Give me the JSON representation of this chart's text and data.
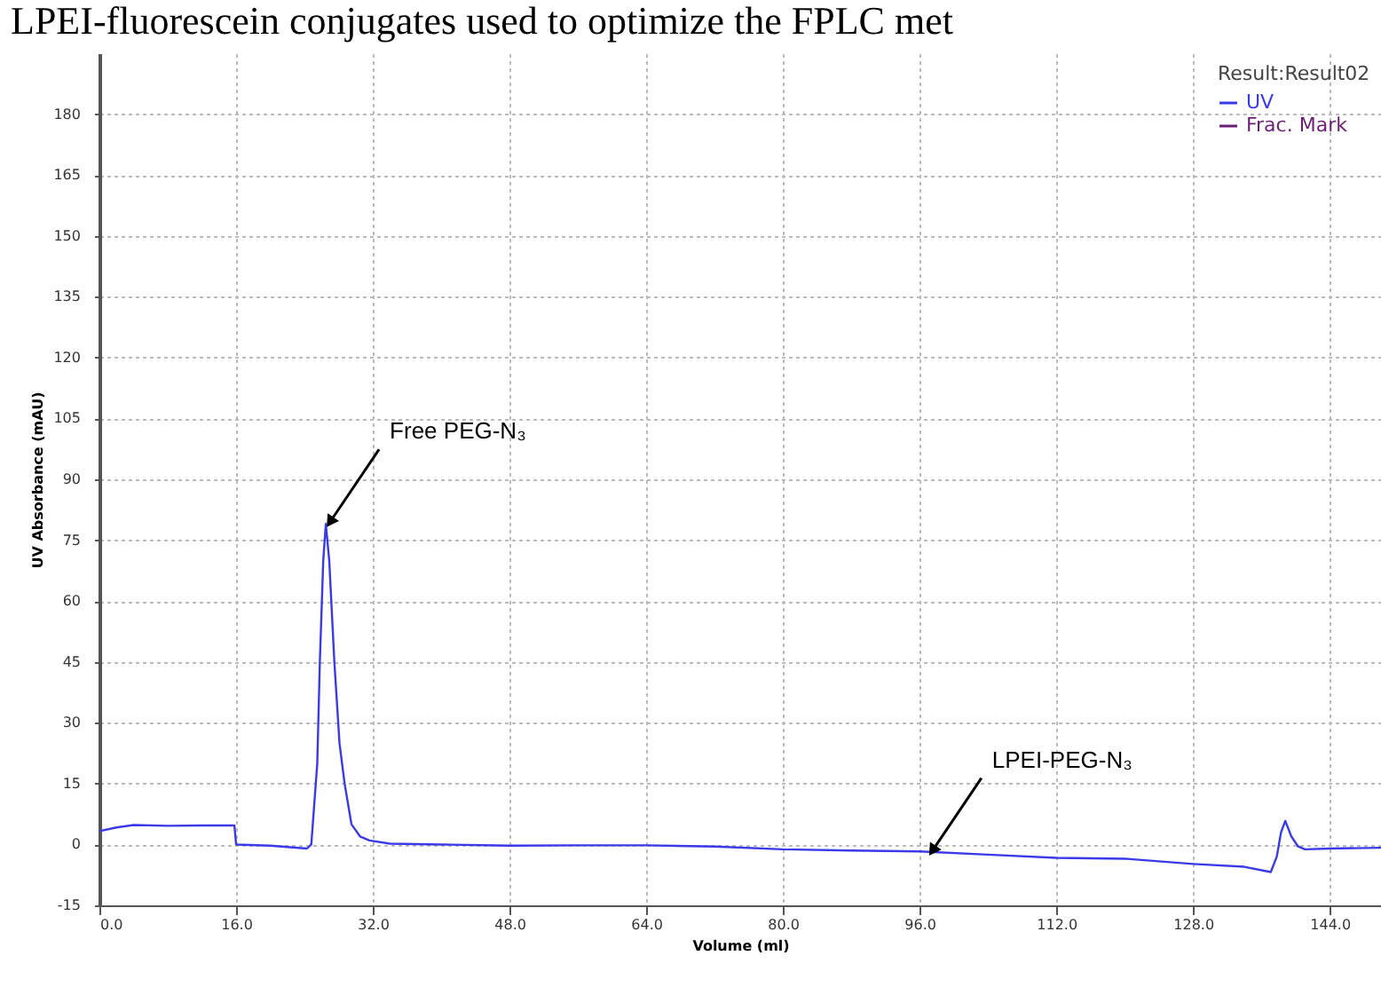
{
  "chart_data": {
    "type": "line",
    "title": "LPEI-fluorescein conjugates used to optimize the FPLC met",
    "xlabel": "Volume  (ml)",
    "ylabel": "UV  Absorbance  (mAU)",
    "legend_title": "Result:Result02",
    "legend": "top right",
    "grid": true,
    "xlim": [
      0,
      150
    ],
    "ylim": [
      -15,
      195
    ],
    "xticks": [
      {
        "value": 0,
        "label": "0.0"
      },
      {
        "value": 16,
        "label": "16.0"
      },
      {
        "value": 32,
        "label": "32.0"
      },
      {
        "value": 48,
        "label": "48.0"
      },
      {
        "value": 64,
        "label": "64.0"
      },
      {
        "value": 80,
        "label": "80.0"
      },
      {
        "value": 96,
        "label": "96.0"
      },
      {
        "value": 112,
        "label": "112.0"
      },
      {
        "value": 128,
        "label": "128.0"
      },
      {
        "value": 144,
        "label": "144.0"
      }
    ],
    "yticks": [
      -15,
      0,
      15,
      30,
      45,
      60,
      75,
      90,
      105,
      120,
      135,
      150,
      165,
      180
    ],
    "series": [
      {
        "name": "UV",
        "color": "#3a3ae8",
        "x": [
          0,
          2,
          4,
          8,
          12,
          15.8,
          16,
          20,
          24.3,
          24.8,
          25.5,
          25.8,
          26.2,
          26.5,
          26.9,
          27.5,
          28.1,
          28.7,
          29.5,
          30.5,
          31.6,
          34,
          40,
          48,
          56,
          64,
          72,
          80,
          88,
          96,
          104,
          112,
          120,
          128,
          134,
          137.1,
          137.8,
          138.3,
          138.8,
          139.5,
          140.3,
          141.1,
          144,
          150
        ],
        "values": [
          3.3,
          4.2,
          4.8,
          4.6,
          4.7,
          4.7,
          0,
          -0.3,
          -1,
          0,
          20,
          45,
          70,
          79,
          70,
          45,
          25,
          15,
          5,
          2,
          1,
          0.2,
          0,
          -0.3,
          -0.2,
          -0.2,
          -0.5,
          -1.2,
          -1.5,
          -1.7,
          -2.5,
          -3.3,
          -3.5,
          -4.8,
          -5.5,
          -6.8,
          -3,
          3,
          5.8,
          2,
          -0.5,
          -1.2,
          -1,
          -0.8
        ]
      },
      {
        "name": "Frac.  Mark",
        "color": "#6b1f73"
      }
    ],
    "annotations": [
      {
        "text": "Free PEG-N₃",
        "x": 26.5,
        "y": 79
      },
      {
        "text": "LPEI-PEG-N₃",
        "x": 97,
        "y": -2
      }
    ]
  }
}
